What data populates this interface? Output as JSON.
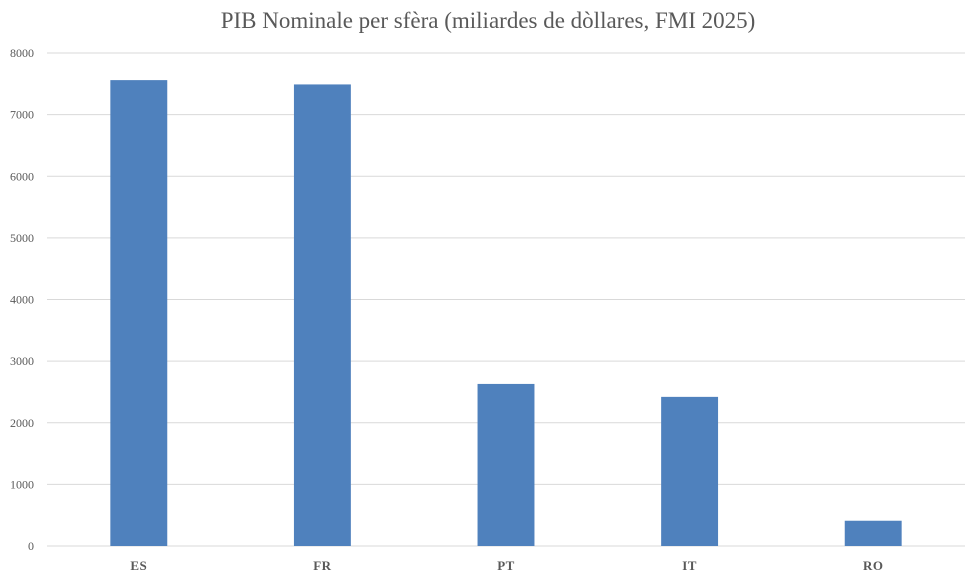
{
  "chart_data": {
    "type": "bar",
    "title": "PIB Nominale per sfèra (miliardes de dòllares, FMI 2025)",
    "categories": [
      "ES",
      "FR",
      "PT",
      "IT",
      "RO"
    ],
    "values": [
      7560,
      7490,
      2630,
      2420,
      410
    ],
    "ylim": [
      0,
      8000
    ],
    "yticks": [
      0,
      1000,
      2000,
      3000,
      4000,
      5000,
      6000,
      7000,
      8000
    ],
    "grid": true,
    "legend": "none",
    "bar_color": "#4f81bd"
  }
}
